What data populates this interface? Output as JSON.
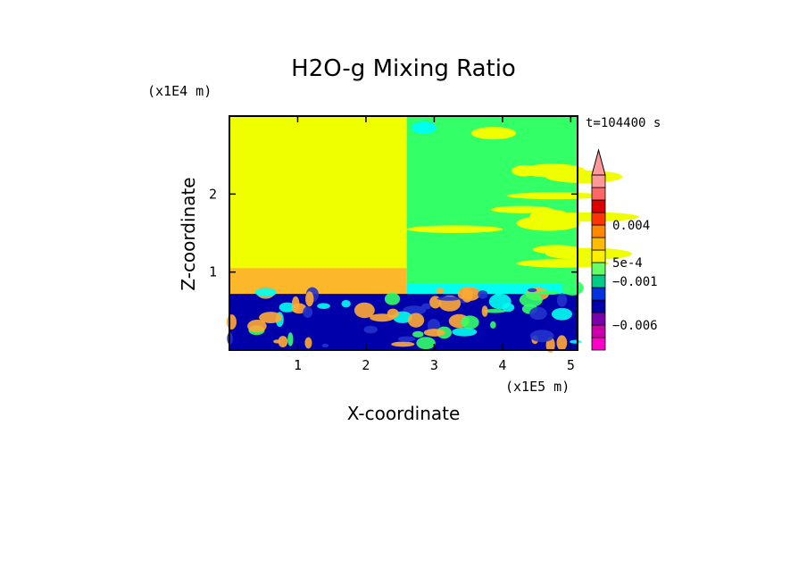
{
  "chart_data": {
    "type": "heatmap",
    "title": "H2O-g Mixing Ratio",
    "xlabel": "X-coordinate",
    "ylabel": "Z-coordinate",
    "x_scale_label": "(x1E5 m)",
    "y_scale_label": "(x1E4 m)",
    "time_label": "t=104400 s",
    "xlim": [
      0,
      5.1
    ],
    "ylim": [
      0,
      3.0
    ],
    "x_ticks": [
      {
        "value": 1,
        "label": "1"
      },
      {
        "value": 2,
        "label": "2"
      },
      {
        "value": 3,
        "label": "3"
      },
      {
        "value": 4,
        "label": "4"
      },
      {
        "value": 5,
        "label": "5"
      }
    ],
    "y_ticks": [
      {
        "value": 1,
        "label": "1"
      },
      {
        "value": 2,
        "label": "2"
      }
    ],
    "colorbar": {
      "colors": [
        "#ff00cc",
        "#cc00aa",
        "#7700aa",
        "#0000aa",
        "#0033dd",
        "#00cc88",
        "#66ff66",
        "#ffee00",
        "#ffbb00",
        "#ff8800",
        "#ff3300",
        "#dd0000",
        "#ff6666",
        "#ff9999"
      ],
      "labels": [
        {
          "text": "0.004",
          "level": 10
        },
        {
          "text": "5e-4",
          "level": 7
        },
        {
          "text": "−0.001",
          "level": 5.5
        },
        {
          "text": "−0.006",
          "level": 2
        }
      ]
    },
    "field_colors": {
      "background": "#f0ff00",
      "moist": "#33ff66",
      "light": "#00ffee",
      "orange": "#ffaa33",
      "dark": "#0000aa",
      "mid": "#2233cc"
    }
  }
}
